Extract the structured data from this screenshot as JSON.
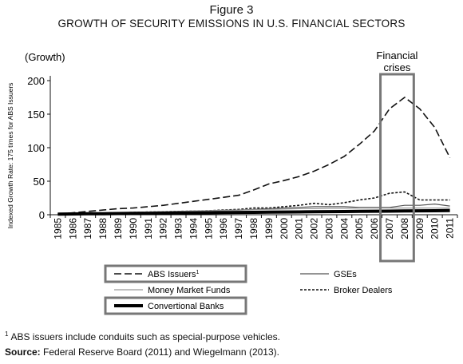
{
  "figure_label": "Figure 3",
  "title": "GROWTH OF SECURITY EMISSIONS IN U.S. FINANCIAL SECTORS",
  "footnote": {
    "marker": "1",
    "text": "ABS issuers include conduits such as special-purpose vehicles."
  },
  "source": {
    "label": "Source:",
    "text": "Federal Reserve Board (2011) and Wiegelmann (2013)."
  },
  "chart_data": {
    "type": "line",
    "ylabel_top": "(Growth)",
    "ylabel": "Indexed Growth Rate: 175 times for ABS Issuers",
    "ylim": [
      0,
      200
    ],
    "yticks": [
      0,
      50,
      100,
      150,
      200
    ],
    "x": [
      "1985",
      "1986",
      "1987",
      "1988",
      "1989",
      "1990",
      "1991",
      "1992",
      "1993",
      "1994",
      "1995",
      "1996",
      "1997",
      "1998",
      "1999",
      "2000",
      "2001",
      "2002",
      "2003",
      "2004",
      "2005",
      "2006",
      "2007",
      "2008",
      "2009",
      "2010",
      "2011"
    ],
    "annotation": {
      "text_lines": [
        "Financial",
        "crises"
      ],
      "x_range": [
        "2007",
        "2008"
      ]
    },
    "series": [
      {
        "name": "ABS Issuers",
        "superscript": "1",
        "style": "long-dash",
        "color": "#111111",
        "values": [
          1,
          3,
          5,
          7,
          9,
          10,
          12,
          14,
          17,
          20,
          23,
          26,
          29,
          37,
          46,
          51,
          57,
          65,
          75,
          87,
          105,
          125,
          158,
          175,
          158,
          130,
          85
        ]
      },
      {
        "name": "Broker Dealers",
        "style": "short-dash",
        "color": "#111111",
        "values": [
          1,
          1.5,
          2,
          2.5,
          3,
          3.5,
          4,
          4.5,
          5,
          5.5,
          6,
          7,
          8,
          10,
          10,
          12,
          14,
          17,
          15,
          18,
          22,
          25,
          32,
          34,
          22,
          22,
          22
        ]
      },
      {
        "name": "GSEs",
        "style": "solid-thin",
        "color": "#555555",
        "values": [
          1,
          1.5,
          2,
          2.5,
          3,
          3.5,
          4,
          4.5,
          5,
          5.5,
          6,
          6.5,
          7,
          8,
          9,
          10,
          11,
          12,
          12,
          12,
          11,
          11,
          11,
          14,
          14,
          16,
          13
        ]
      },
      {
        "name": "Money Market Funds",
        "style": "solid-thin",
        "color": "#9a9a9a",
        "values": [
          1,
          1.5,
          2,
          2.5,
          3,
          3.5,
          4,
          4.5,
          5,
          5.5,
          6,
          6.5,
          7,
          7.5,
          8,
          8.5,
          9,
          9,
          9.5,
          9.5,
          10,
          10,
          10,
          10,
          10,
          10,
          10
        ]
      },
      {
        "name": "Conventional Banks",
        "style": "solid-thick",
        "color": "#000000",
        "values": [
          1,
          1.2,
          1.4,
          1.6,
          1.8,
          2,
          2.2,
          2.4,
          2.6,
          2.8,
          3,
          3.2,
          3.4,
          3.6,
          3.8,
          4,
          4.2,
          4.4,
          4.6,
          4.8,
          5,
          5.2,
          5.4,
          5.6,
          5.8,
          6,
          6.2
        ]
      }
    ],
    "legend": {
      "placement": "bottom",
      "items": [
        {
          "series": "ABS Issuers",
          "label": "ABS Issuers",
          "superscript": "1",
          "boxed": true
        },
        {
          "series": "GSEs",
          "label": "GSEs",
          "boxed": false
        },
        {
          "series": "Money Market Funds",
          "label": "Money Market Funds",
          "boxed": false
        },
        {
          "series": "Broker Dealers",
          "label": "Broker Dealers",
          "boxed": false
        },
        {
          "series": "Conventional Banks",
          "label": "Convertional Banks",
          "boxed": true
        }
      ]
    }
  }
}
